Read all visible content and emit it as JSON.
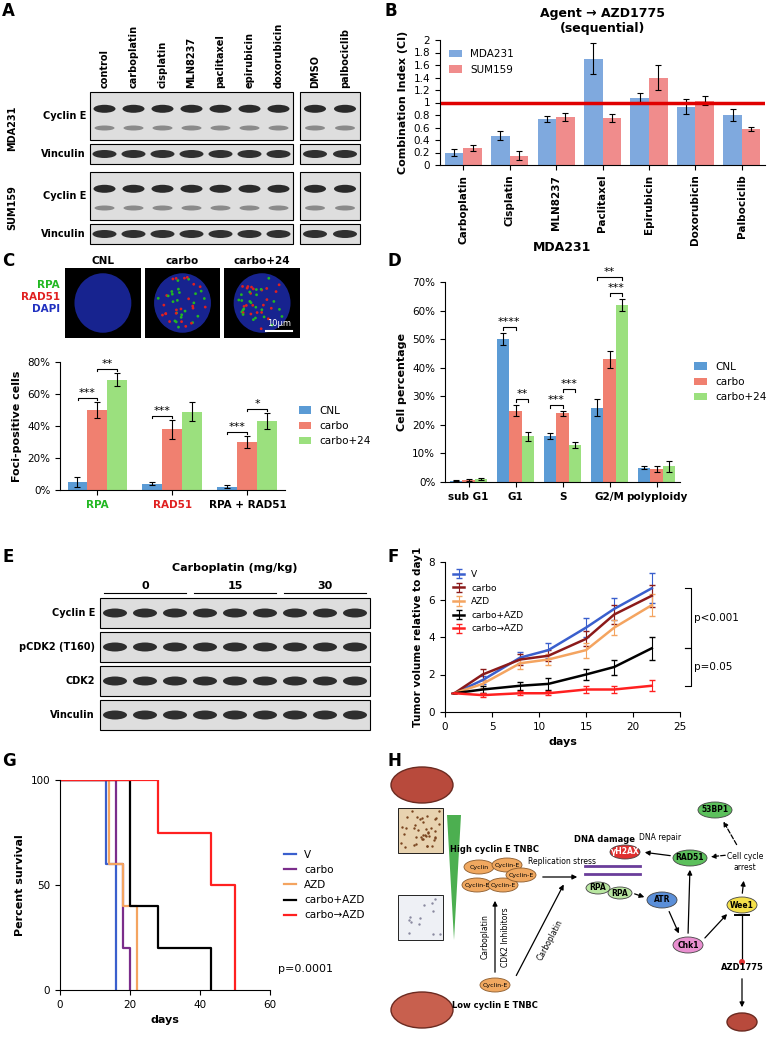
{
  "panel_labels": [
    "A",
    "B",
    "C",
    "D",
    "E",
    "F",
    "G",
    "H"
  ],
  "blot_A": {
    "lanes": [
      "control",
      "carboplatin",
      "cisplatin",
      "MLN8237",
      "paclitaxel",
      "epirubicin",
      "doxorubicin",
      "DMSO",
      "palbociclib"
    ],
    "cell_lines": [
      {
        "name": "MDA231",
        "rows": [
          "Cyclin E",
          "Vinculin"
        ]
      },
      {
        "name": "SUM159",
        "rows": [
          "Cyclin E",
          "Vinculin"
        ]
      }
    ]
  },
  "image_C": {
    "conditions": [
      "CNL",
      "carbo",
      "carbo+24"
    ],
    "stains": [
      {
        "name": "RPA",
        "color": "#22b822"
      },
      {
        "name": "RAD51",
        "color": "#e02020"
      },
      {
        "name": "DAPI",
        "color": "#2030c0"
      }
    ],
    "scale_bar": "10μm"
  },
  "blot_E": {
    "title": "Carboplatin (mg/kg)",
    "doses": [
      "0",
      "15",
      "30"
    ],
    "rows": [
      "Cyclin E",
      "pCDK2 (T160)",
      "CDK2",
      "Vinculin"
    ]
  },
  "diagram_H": {
    "high_label": "High cyclin E TNBC",
    "low_label": "Low cyclin E TNBC",
    "high_cyclins": [
      "Cyclin",
      "Cyclin-E",
      "Cyclin-E",
      "Cyclin-E",
      "Cyclin-E"
    ],
    "low_cyclins": [
      "Cyclin-E"
    ],
    "treatment_up": [
      "Carboplatin",
      "CDK2 Inhibitors"
    ],
    "treatment_diag": "Carboplatin",
    "stress": "Replication stress",
    "damage": "DNA damage",
    "repair": "DNA repair",
    "gh2ax": "γH2AX",
    "rpa": [
      "RPA",
      "RPA"
    ],
    "bp53": "53BP1",
    "rad51": "RAD51",
    "atr": "ATR",
    "chk1": "Chk1",
    "wee1": "Wee1",
    "arrest": "Cell cycle\narrest",
    "drug": "AZD1775"
  },
  "chart_data": [
    {
      "type": "bar",
      "title": "Agent → AZD1775\n(sequential)",
      "ylabel": "Combination Index (CI)",
      "categories": [
        "Carboplatin",
        "Cisplatin",
        "MLN8237",
        "Paclitaxel",
        "Epirubicin",
        "Doxorubicin",
        "Palbociclib"
      ],
      "series": [
        {
          "name": "MDA231",
          "color": "#7fa9de",
          "values": [
            0.2,
            0.47,
            0.74,
            1.7,
            1.08,
            0.93,
            0.8
          ],
          "errors": [
            0.05,
            0.07,
            0.05,
            0.25,
            0.07,
            0.12,
            0.1
          ]
        },
        {
          "name": "SUM159",
          "color": "#f08c8c",
          "values": [
            0.27,
            0.15,
            0.77,
            0.75,
            1.4,
            1.03,
            0.58
          ],
          "errors": [
            0.05,
            0.07,
            0.06,
            0.06,
            0.2,
            0.07,
            0.03
          ]
        }
      ],
      "threshold": 1,
      "ylim": [
        0,
        2
      ],
      "yticks": [
        0,
        0.2,
        0.4,
        0.6,
        0.8,
        1,
        1.2,
        1.4,
        1.6,
        1.8,
        2
      ],
      "legend": "upper left"
    },
    {
      "type": "bar",
      "ylabel": "Foci-positive cells",
      "categories": [
        "RPA",
        "RAD51",
        "RPA + RAD51"
      ],
      "series": [
        {
          "name": "CNL",
          "color": "#5b9bd5",
          "values": [
            5,
            4,
            2
          ],
          "errors": [
            3,
            1,
            1
          ]
        },
        {
          "name": "carbo",
          "color": "#f08070",
          "values": [
            50,
            38,
            30
          ],
          "errors": [
            5,
            6,
            4
          ]
        },
        {
          "name": "carbo+24",
          "color": "#9be07e",
          "values": [
            69,
            49,
            43
          ],
          "errors": [
            4,
            6,
            5
          ]
        }
      ],
      "significance": [
        {
          "text": "***",
          "category": "RPA",
          "series": [
            "CNL",
            "carbo"
          ]
        },
        {
          "text": "**",
          "category": "RPA",
          "series": [
            "carbo",
            "carbo+24"
          ]
        },
        {
          "text": "***",
          "category": "RAD51",
          "series": [
            "CNL",
            "carbo"
          ]
        },
        {
          "text": "***",
          "category": "RPA + RAD51",
          "series": [
            "CNL",
            "carbo"
          ]
        },
        {
          "text": "*",
          "category": "RPA + RAD51",
          "series": [
            "carbo",
            "carbo+24"
          ]
        }
      ],
      "ylim": [
        0,
        80
      ],
      "yticks": [
        {
          "value": 0,
          "label": "0%"
        },
        {
          "value": 20,
          "label": "20%"
        },
        {
          "value": 40,
          "label": "40%"
        },
        {
          "value": 60,
          "label": "60%"
        },
        {
          "value": 80,
          "label": "80%"
        }
      ],
      "legend": "right"
    },
    {
      "type": "bar",
      "title": "MDA231",
      "ylabel": "Cell percentage",
      "categories": [
        "sub G1",
        "G1",
        "S",
        "G2/M",
        "polyploidy"
      ],
      "series": [
        {
          "name": "CNL",
          "color": "#5b9bd5",
          "values": [
            0.5,
            50,
            16,
            26,
            5
          ],
          "errors": [
            0.2,
            2,
            1,
            3,
            0.5
          ]
        },
        {
          "name": "carbo",
          "color": "#f08070",
          "values": [
            0.7,
            25,
            24,
            43,
            4.5
          ],
          "errors": [
            0.2,
            2,
            0.8,
            3,
            1
          ]
        },
        {
          "name": "carbo+24",
          "color": "#9be07e",
          "values": [
            1,
            16,
            13,
            62,
            5.5
          ],
          "errors": [
            0.3,
            1.5,
            1,
            2,
            2
          ]
        }
      ],
      "significance": [
        {
          "text": "****",
          "category": "G1",
          "series": [
            "CNL",
            "carbo"
          ]
        },
        {
          "text": "**",
          "category": "G1",
          "series": [
            "carbo",
            "carbo+24"
          ]
        },
        {
          "text": "***",
          "category": "S",
          "series": [
            "CNL",
            "carbo"
          ]
        },
        {
          "text": "***",
          "category": "S",
          "series": [
            "carbo",
            "carbo+24"
          ]
        },
        {
          "text": "***",
          "category": "G2/M",
          "series": [
            "carbo",
            "carbo+24"
          ]
        },
        {
          "text": "**",
          "category": "G2/M",
          "series": [
            "CNL",
            "carbo+24"
          ]
        }
      ],
      "ylim": [
        0,
        70
      ],
      "yticks": [
        {
          "value": 0,
          "label": "0%"
        },
        {
          "value": 10,
          "label": "10%"
        },
        {
          "value": 20,
          "label": "20%"
        },
        {
          "value": 30,
          "label": "30%"
        },
        {
          "value": 40,
          "label": "40%"
        },
        {
          "value": 50,
          "label": "50%"
        },
        {
          "value": 60,
          "label": "60%"
        },
        {
          "value": 70,
          "label": "70%"
        }
      ],
      "legend": "right"
    },
    {
      "type": "line",
      "xlabel": "days",
      "ylabel": "Tumor volume relative to day1",
      "x": [
        1,
        4,
        8,
        11,
        15,
        18,
        22
      ],
      "series": [
        {
          "name": "V",
          "color": "#3a5fcd",
          "values": [
            1,
            1.7,
            2.9,
            3.3,
            4.5,
            5.5,
            6.6
          ],
          "errors": [
            0,
            0.2,
            0.3,
            0.4,
            0.5,
            0.6,
            0.8
          ]
        },
        {
          "name": "carbo",
          "color": "#8b1a1a",
          "values": [
            1,
            2.0,
            2.8,
            3.0,
            3.9,
            5.2,
            6.2
          ],
          "errors": [
            0,
            0.3,
            0.3,
            0.3,
            0.4,
            0.5,
            0.6
          ]
        },
        {
          "name": "AZD",
          "color": "#f4a460",
          "values": [
            1,
            1.5,
            2.6,
            2.8,
            3.3,
            4.5,
            5.7
          ],
          "errors": [
            0,
            0.2,
            0.3,
            0.3,
            0.4,
            0.4,
            0.6
          ]
        },
        {
          "name": "carbo+AZD",
          "color": "#000000",
          "values": [
            1,
            1.2,
            1.4,
            1.5,
            2.0,
            2.4,
            3.4
          ],
          "errors": [
            0,
            0.2,
            0.2,
            0.3,
            0.3,
            0.4,
            0.6
          ]
        },
        {
          "name": "carbo→AZD",
          "color": "#ff2020",
          "values": [
            1,
            0.9,
            1.0,
            1.0,
            1.2,
            1.2,
            1.4
          ],
          "errors": [
            0,
            0.1,
            0.1,
            0.1,
            0.2,
            0.2,
            0.3
          ]
        }
      ],
      "comparisons": [
        {
          "text": "p<0.001",
          "series": [
            "V",
            "carbo+AZD"
          ]
        },
        {
          "text": "p=0.05",
          "series": [
            "carbo+AZD",
            "carbo→AZD"
          ]
        }
      ],
      "xlim": [
        0,
        25
      ],
      "xticks": [
        0,
        5,
        10,
        15,
        20,
        25
      ],
      "ylim": [
        0,
        8
      ],
      "yticks": [
        0,
        2,
        4,
        6,
        8
      ],
      "legend": "upper left"
    },
    {
      "type": "step",
      "xlabel": "days",
      "ylabel": "Percent survival",
      "series": [
        {
          "name": "V",
          "color": "#3a5fcd",
          "x": [
            0,
            13,
            16
          ],
          "values": [
            100,
            60,
            0
          ]
        },
        {
          "name": "carbo",
          "color": "#7b2d8b",
          "x": [
            0,
            16,
            18,
            20
          ],
          "values": [
            100,
            60,
            20,
            0
          ]
        },
        {
          "name": "AZD",
          "color": "#f4a460",
          "x": [
            0,
            14,
            18,
            22
          ],
          "values": [
            100,
            60,
            40,
            0
          ]
        },
        {
          "name": "carbo+AZD",
          "color": "#000000",
          "x": [
            0,
            20,
            28,
            43
          ],
          "values": [
            100,
            40,
            20,
            0
          ]
        },
        {
          "name": "carbo→AZD",
          "color": "#ff2020",
          "x": [
            0,
            28,
            43,
            50
          ],
          "values": [
            100,
            75,
            50,
            0
          ]
        }
      ],
      "annotation": "p=0.0001",
      "xlim": [
        0,
        60
      ],
      "xticks": [
        0,
        20,
        40,
        60
      ],
      "ylim": [
        0,
        100
      ],
      "yticks": [
        0,
        50,
        100
      ],
      "legend": "right"
    }
  ]
}
